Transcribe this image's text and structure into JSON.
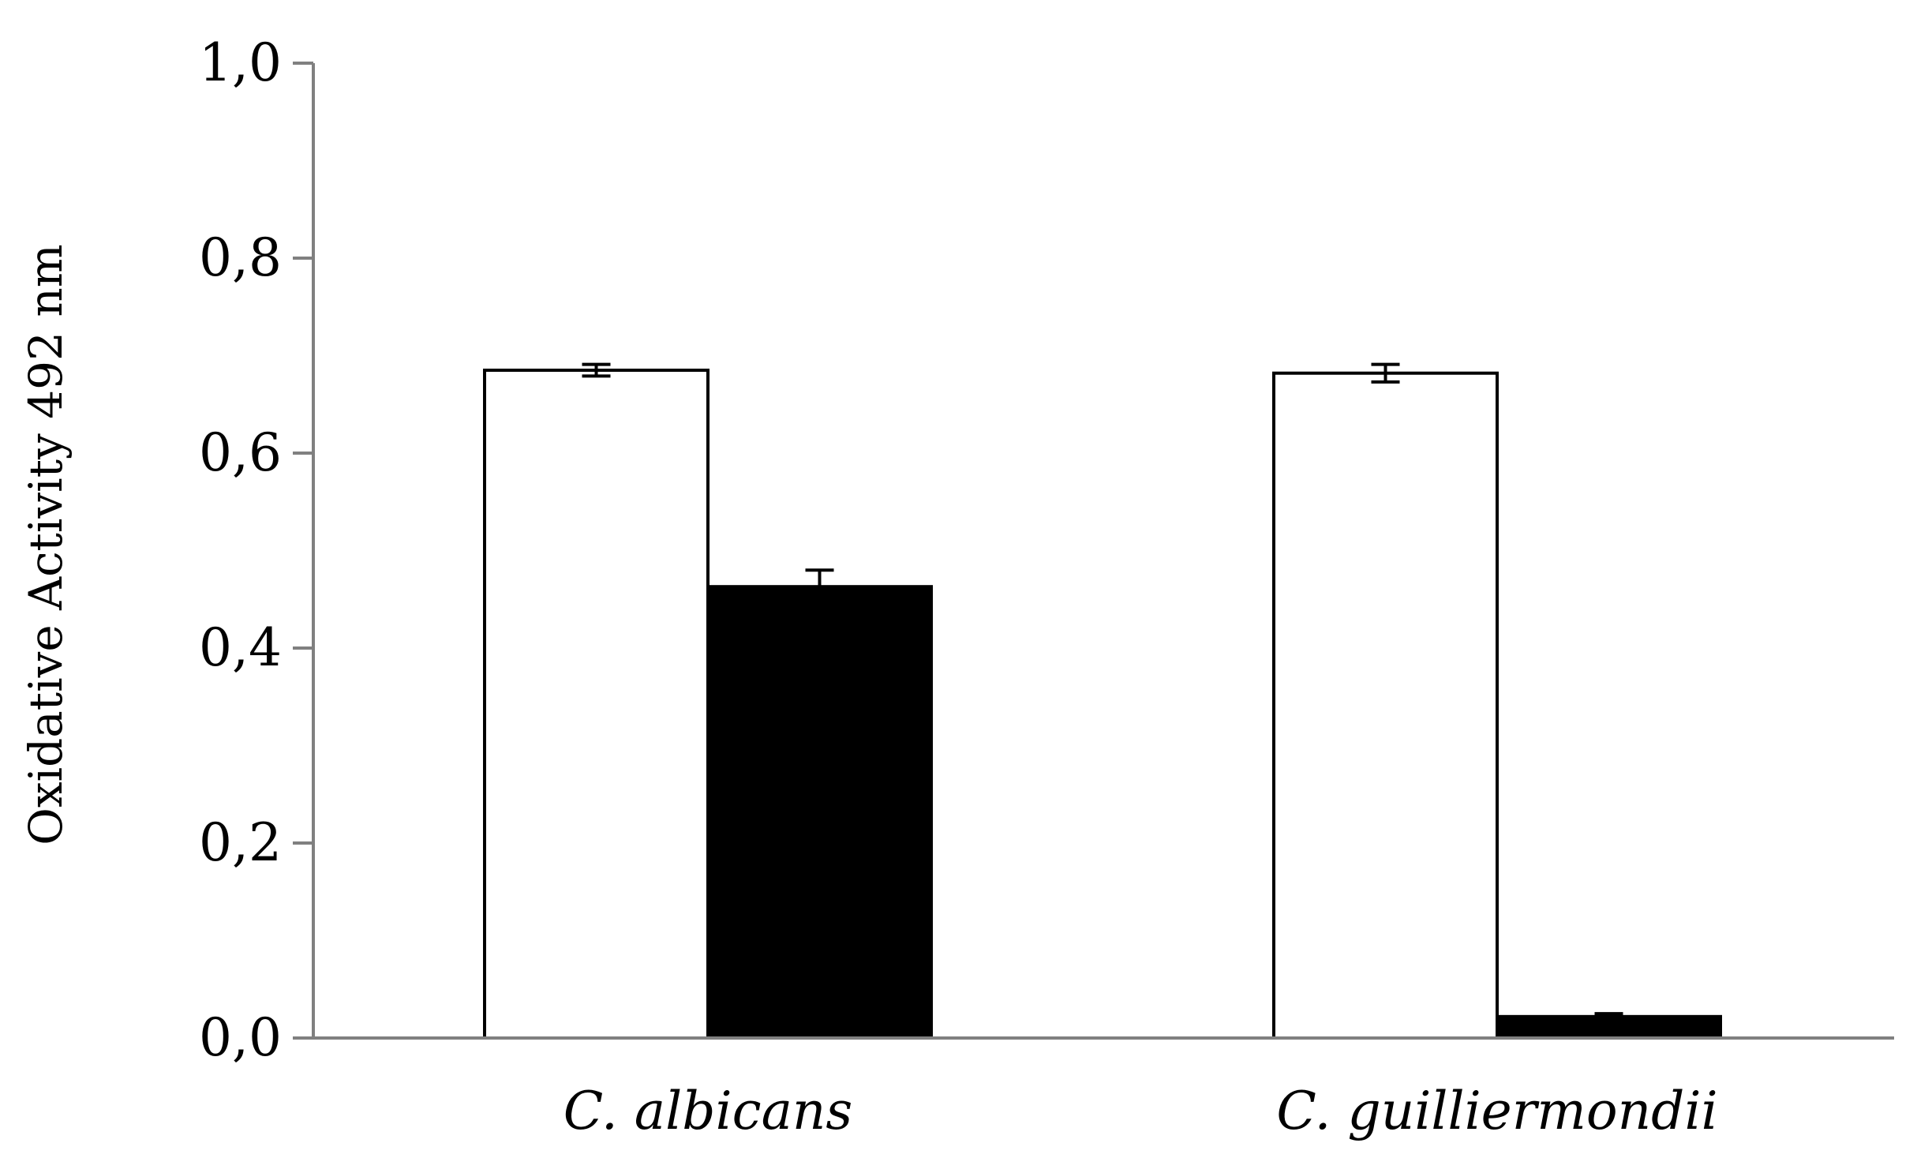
{
  "chart_data": {
    "type": "bar",
    "title": "",
    "xlabel": "",
    "ylabel": "Oxidative Activity  492 nm",
    "ylim": [
      0,
      1.0
    ],
    "y_ticks": [
      0.0,
      0.2,
      0.4,
      0.6,
      0.8,
      1.0
    ],
    "y_tick_labels": [
      "0,0",
      "0,2",
      "0,4",
      "0,6",
      "0,8",
      "1,0"
    ],
    "categories": [
      "C. albicans",
      "C. guilliermondii"
    ],
    "grid": false,
    "legend": null,
    "series": [
      {
        "fill": "#ffffff",
        "stroke": "#000000",
        "values": [
          0.685,
          0.682
        ],
        "errors": [
          0.006,
          0.009
        ]
      },
      {
        "fill": "#000000",
        "stroke": "#000000",
        "values": [
          0.463,
          0.022
        ],
        "errors": [
          0.017,
          0.003
        ]
      }
    ],
    "colors": {
      "axis": "#808080",
      "text": "#000000",
      "background": "#ffffff"
    }
  }
}
